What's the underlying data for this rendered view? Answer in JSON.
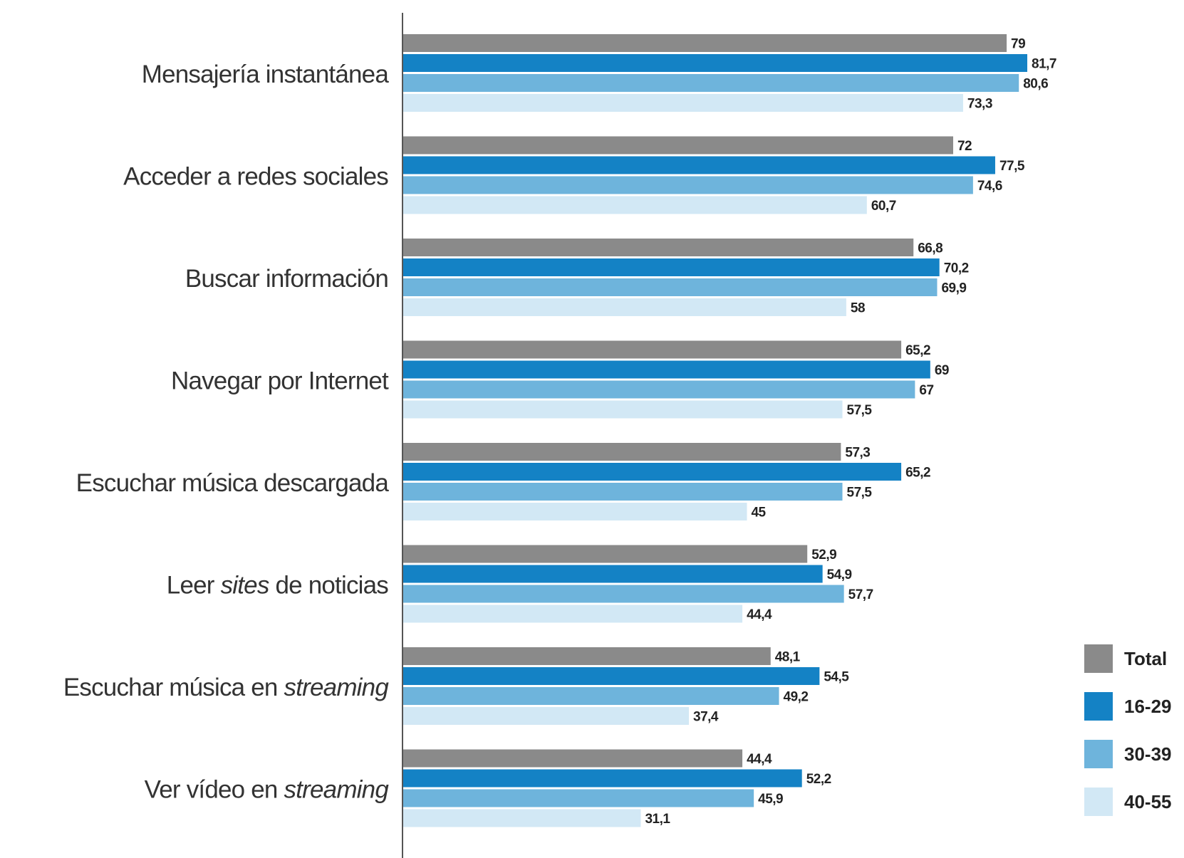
{
  "chart_data": {
    "type": "bar",
    "orientation": "horizontal",
    "categories": [
      [
        {
          "t": "Mensajería instantánea",
          "i": false
        }
      ],
      [
        {
          "t": "Acceder a redes sociales",
          "i": false
        }
      ],
      [
        {
          "t": "Buscar información",
          "i": false
        }
      ],
      [
        {
          "t": "Navegar por Internet",
          "i": false
        }
      ],
      [
        {
          "t": "Escuchar música descargada",
          "i": false
        }
      ],
      [
        {
          "t": "Leer ",
          "i": false
        },
        {
          "t": "sites",
          "i": true
        },
        {
          "t": " de noticias",
          "i": false
        }
      ],
      [
        {
          "t": "Escuchar música en ",
          "i": false
        },
        {
          "t": "streaming",
          "i": true
        }
      ],
      [
        {
          "t": "Ver vídeo en ",
          "i": false
        },
        {
          "t": "streaming",
          "i": true
        }
      ]
    ],
    "series": [
      {
        "name": "Total",
        "color": "#8a8a8a",
        "values": [
          79,
          72,
          66.8,
          65.2,
          57.3,
          52.9,
          48.1,
          44.4
        ],
        "labels": [
          "79",
          "72",
          "66,8",
          "65,2",
          "57,3",
          "52,9",
          "48,1",
          "44,4"
        ]
      },
      {
        "name": "16-29",
        "color": "#1482c5",
        "values": [
          81.7,
          77.5,
          70.2,
          69,
          65.2,
          54.9,
          54.5,
          52.2
        ],
        "labels": [
          "81,7",
          "77,5",
          "70,2",
          "69",
          "65,2",
          "54,9",
          "54,5",
          "52,2"
        ]
      },
      {
        "name": "30-39",
        "color": "#6eb4dc",
        "values": [
          80.6,
          74.6,
          69.9,
          67,
          57.5,
          57.7,
          49.2,
          45.9
        ],
        "labels": [
          "80,6",
          "74,6",
          "69,9",
          "67",
          "57,5",
          "57,7",
          "49,2",
          "45,9"
        ]
      },
      {
        "name": "40-55",
        "color": "#d2e8f5",
        "values": [
          73.3,
          60.7,
          58,
          57.5,
          45,
          44.4,
          37.4,
          31.1
        ],
        "labels": [
          "73,3",
          "60,7",
          "58",
          "57,5",
          "45",
          "44,4",
          "37,4",
          "31,1"
        ]
      }
    ],
    "xlim": [
      0,
      100
    ],
    "legend_position": "bottom-right",
    "axis_color": "#555555"
  }
}
